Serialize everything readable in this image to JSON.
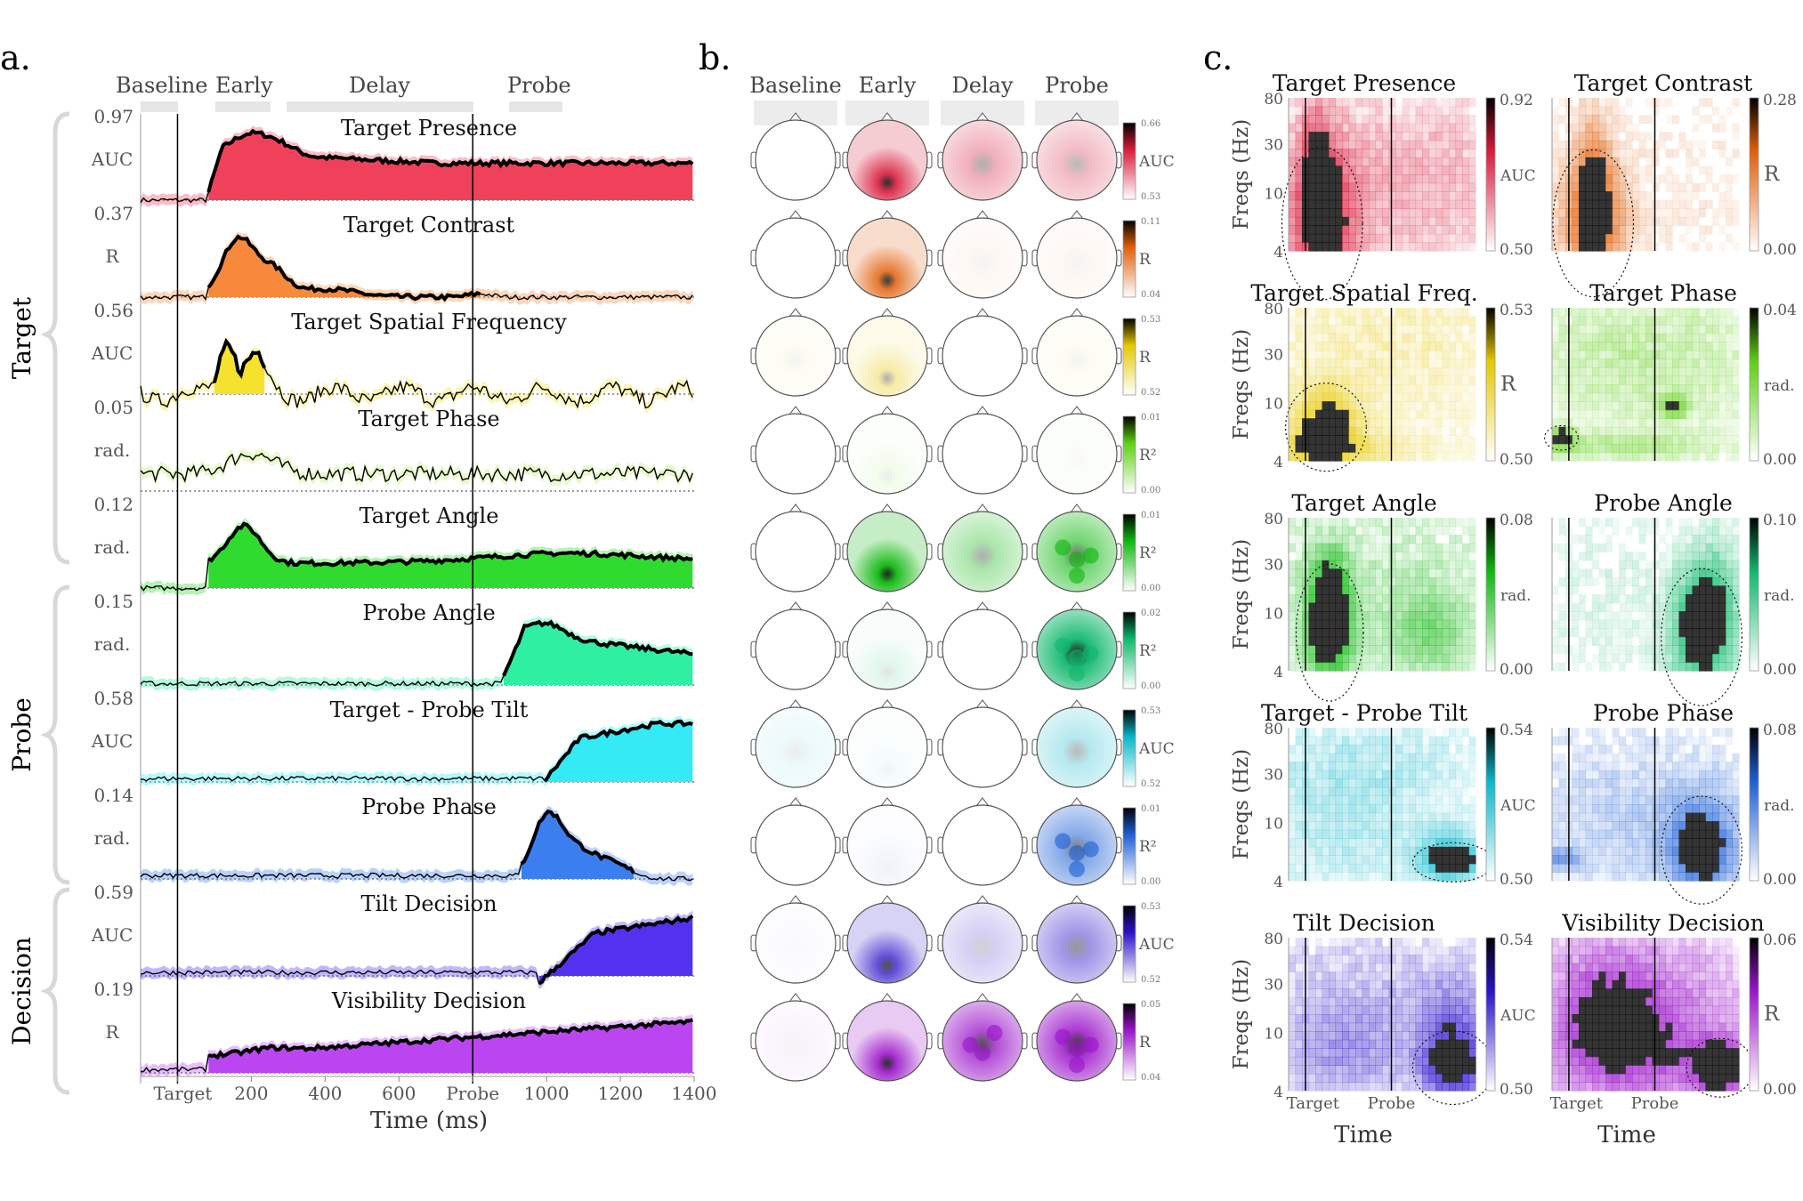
{
  "figure": {
    "panel_labels": [
      "a.",
      "b.",
      "c."
    ],
    "group_labels": [
      "Target",
      "Probe",
      "Decision"
    ],
    "windows": [
      "Baseline",
      "Early",
      "Delay",
      "Probe"
    ]
  },
  "panel_a": {
    "xlabel": "Time (ms)",
    "xticks": [
      "Target",
      "200",
      "400",
      "600",
      "Probe",
      "1000",
      "1200",
      "1400"
    ],
    "xtick_values": [
      0,
      200,
      400,
      600,
      800,
      1000,
      1200,
      1400
    ],
    "xlim": [
      -100,
      1400
    ],
    "target_time": 0,
    "probe_time": 800,
    "rows": [
      {
        "title": "Target Presence",
        "metric": "AUC",
        "ymax": "0.97",
        "color": "#f0415a",
        "onset": 80,
        "shape": "presence",
        "sig": [
          [
            80,
            1400
          ]
        ]
      },
      {
        "title": "Target Contrast",
        "metric": "R",
        "ymax": "0.37",
        "color": "#f7893c",
        "onset": 80,
        "shape": "contrast",
        "sig": [
          [
            80,
            820
          ]
        ]
      },
      {
        "title": "Target Spatial Frequency",
        "metric": "AUC",
        "ymax": "0.56",
        "color": "#f5e12e",
        "onset": 100,
        "shape": "sf",
        "sig": [
          [
            100,
            240
          ]
        ]
      },
      {
        "title": "Target Phase",
        "metric": "rad.",
        "ymax": "0.05",
        "color": "#b9f26b",
        "onset": 0,
        "shape": "phase",
        "sig": []
      },
      {
        "title": "Target Angle",
        "metric": "rad.",
        "ymax": "0.12",
        "color": "#2fdb2f",
        "onset": 80,
        "shape": "angle",
        "sig": [
          [
            80,
            1400
          ]
        ]
      },
      {
        "title": "Probe Angle",
        "metric": "rad.",
        "ymax": "0.15",
        "color": "#2ff0a2",
        "onset": 880,
        "shape": "pangle",
        "sig": [
          [
            880,
            1400
          ]
        ]
      },
      {
        "title": "Target - Probe Tilt",
        "metric": "AUC",
        "ymax": "0.58",
        "color": "#33eaf5",
        "onset": 990,
        "shape": "tilt",
        "sig": [
          [
            990,
            1400
          ]
        ]
      },
      {
        "title": "Probe Phase",
        "metric": "rad.",
        "ymax": "0.14",
        "color": "#3a7ef0",
        "onset": 930,
        "shape": "pphase",
        "sig": [
          [
            930,
            1240
          ]
        ]
      },
      {
        "title": "Tilt Decision",
        "metric": "AUC",
        "ymax": "0.59",
        "color": "#5331f0",
        "onset": 980,
        "shape": "tdec",
        "sig": [
          [
            980,
            1400
          ]
        ]
      },
      {
        "title": "Visibility Decision",
        "metric": "R",
        "ymax": "0.19",
        "color": "#bb45f0",
        "onset": 80,
        "shape": "vdec",
        "sig": [
          [
            80,
            1400
          ]
        ]
      }
    ]
  },
  "panel_b": {
    "rows": [
      {
        "metric": "AUC",
        "hi": "0.66",
        "lo": "0.53",
        "color": "#d81b3c",
        "maps": [
          0.0,
          0.9,
          0.35,
          0.3
        ]
      },
      {
        "metric": "R",
        "hi": "0.11",
        "lo": "0.04",
        "color": "#e0600c",
        "maps": [
          0.0,
          0.85,
          0.05,
          0.05
        ]
      },
      {
        "metric": "R",
        "hi": "0.53",
        "lo": "0.52",
        "color": "#e7c800",
        "maps": [
          0.05,
          0.35,
          0.0,
          0.05
        ]
      },
      {
        "metric": "R²",
        "hi": "0.01",
        "lo": "0.00",
        "color": "#5fcf13",
        "maps": [
          0.0,
          0.08,
          0.0,
          0.03
        ]
      },
      {
        "metric": "R²",
        "hi": "0.01",
        "lo": "0.00",
        "color": "#0fb80f",
        "maps": [
          0.0,
          0.95,
          0.35,
          0.6
        ]
      },
      {
        "metric": "R²",
        "hi": "0.02",
        "lo": "0.00",
        "color": "#0fb86c",
        "maps": [
          0.0,
          0.12,
          0.0,
          0.95
        ]
      },
      {
        "metric": "AUC",
        "hi": "0.53",
        "lo": "0.52",
        "color": "#08b7c9",
        "maps": [
          0.08,
          0.05,
          0.0,
          0.3
        ]
      },
      {
        "metric": "R²",
        "hi": "0.01",
        "lo": "0.00",
        "color": "#1e5fd4",
        "maps": [
          0.0,
          0.06,
          0.0,
          0.55
        ]
      },
      {
        "metric": "AUC",
        "hi": "0.53",
        "lo": "0.52",
        "color": "#2a13c9",
        "maps": [
          0.02,
          0.75,
          0.2,
          0.45
        ]
      },
      {
        "metric": "R",
        "hi": "0.05",
        "lo": "0.04",
        "color": "#9a14c9",
        "maps": [
          0.05,
          0.9,
          0.75,
          0.85
        ]
      }
    ]
  },
  "panel_c": {
    "ylabel": "Freqs (Hz)",
    "yticks": [
      "80",
      "30",
      "10",
      "4"
    ],
    "xlabel": "Time",
    "xticks": [
      "Target",
      "Probe"
    ],
    "cells": [
      {
        "title": "Target Presence",
        "metric": "AUC",
        "hi": "0.92",
        "lo": "0.50",
        "color": "#d81b3c",
        "blobs": [
          [
            0.18,
            0.82,
            0.12,
            0.35,
            1.0
          ],
          [
            0.15,
            0.45,
            0.06,
            0.35,
            0.55
          ],
          [
            0.6,
            0.7,
            0.45,
            0.35,
            0.28
          ],
          [
            0.6,
            0.3,
            0.45,
            0.25,
            0.15
          ]
        ]
      },
      {
        "title": "Target Contrast",
        "metric": "R",
        "hi": "0.28",
        "lo": "0.00",
        "color": "#e0600c",
        "blobs": [
          [
            0.22,
            0.82,
            0.12,
            0.3,
            1.0
          ],
          [
            0.22,
            0.45,
            0.07,
            0.3,
            0.5
          ],
          [
            0.7,
            0.7,
            0.3,
            0.3,
            0.08
          ]
        ]
      },
      {
        "title": "Target Spatial Freq.",
        "metric": "R",
        "hi": "0.53",
        "lo": "0.50",
        "color": "#e7c800",
        "blobs": [
          [
            0.2,
            0.78,
            0.12,
            0.18,
            1.0
          ],
          [
            0.22,
            0.92,
            0.3,
            0.08,
            0.5
          ],
          [
            0.5,
            0.3,
            0.5,
            0.4,
            0.25
          ]
        ]
      },
      {
        "title": "Target Phase",
        "metric": "rad.",
        "hi": "0.04",
        "lo": "0.00",
        "color": "#5fcf13",
        "blobs": [
          [
            0.05,
            0.85,
            0.05,
            0.05,
            1.0
          ],
          [
            0.65,
            0.64,
            0.05,
            0.05,
            0.95
          ],
          [
            0.4,
            0.9,
            0.35,
            0.06,
            0.4
          ],
          [
            0.5,
            0.35,
            0.5,
            0.35,
            0.35
          ]
        ]
      },
      {
        "title": "Target Angle",
        "metric": "rad.",
        "hi": "0.08",
        "lo": "0.00",
        "color": "#0fb80f",
        "blobs": [
          [
            0.22,
            0.75,
            0.1,
            0.28,
            1.0
          ],
          [
            0.22,
            0.5,
            0.06,
            0.2,
            0.7
          ],
          [
            0.75,
            0.75,
            0.15,
            0.2,
            0.5
          ],
          [
            0.5,
            0.4,
            0.5,
            0.4,
            0.2
          ]
        ]
      },
      {
        "title": "Probe Angle",
        "metric": "rad.",
        "hi": "0.10",
        "lo": "0.00",
        "color": "#0fb86c",
        "blobs": [
          [
            0.8,
            0.78,
            0.12,
            0.28,
            1.0
          ],
          [
            0.85,
            0.5,
            0.1,
            0.25,
            0.55
          ],
          [
            0.3,
            0.6,
            0.3,
            0.3,
            0.12
          ]
        ]
      },
      {
        "title": "Target - Probe Tilt",
        "metric": "AUC",
        "hi": "0.54",
        "lo": "0.50",
        "color": "#08b7c9",
        "blobs": [
          [
            0.88,
            0.88,
            0.12,
            0.08,
            1.0
          ],
          [
            0.85,
            0.75,
            0.12,
            0.12,
            0.4
          ],
          [
            0.3,
            0.6,
            0.3,
            0.35,
            0.3
          ],
          [
            0.5,
            0.2,
            0.45,
            0.2,
            0.15
          ]
        ]
      },
      {
        "title": "Probe Phase",
        "metric": "rad.",
        "hi": "0.08",
        "lo": "0.00",
        "color": "#1e5fd4",
        "blobs": [
          [
            0.8,
            0.8,
            0.12,
            0.22,
            1.0
          ],
          [
            0.05,
            0.85,
            0.08,
            0.05,
            0.6
          ],
          [
            0.5,
            0.6,
            0.45,
            0.35,
            0.3
          ]
        ]
      },
      {
        "title": "Tilt Decision",
        "metric": "AUC",
        "hi": "0.54",
        "lo": "0.50",
        "color": "#2a13c9",
        "blobs": [
          [
            0.88,
            0.85,
            0.12,
            0.15,
            1.0
          ],
          [
            0.88,
            0.55,
            0.12,
            0.2,
            0.5
          ],
          [
            0.3,
            0.75,
            0.25,
            0.25,
            0.4
          ],
          [
            0.5,
            0.3,
            0.45,
            0.3,
            0.2
          ]
        ]
      },
      {
        "title": "Visibility Decision",
        "metric": "R",
        "hi": "0.06",
        "lo": "0.00",
        "color": "#9a14c9",
        "blobs": [
          [
            0.9,
            0.85,
            0.1,
            0.12,
            1.0
          ],
          [
            0.5,
            0.75,
            0.4,
            0.25,
            0.7
          ],
          [
            0.3,
            0.5,
            0.2,
            0.3,
            0.55
          ],
          [
            0.5,
            0.25,
            0.45,
            0.25,
            0.35
          ]
        ]
      }
    ]
  }
}
